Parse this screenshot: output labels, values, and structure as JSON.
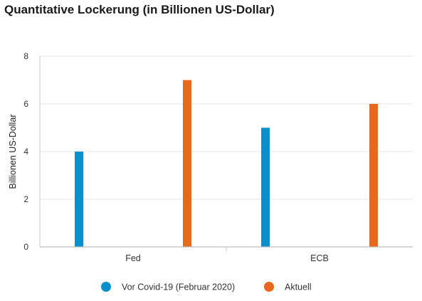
{
  "chart_data": {
    "type": "bar",
    "title": "Quantitative Lockerung (in Billionen US-Dollar)",
    "ylabel": "Billionen US-Dollar",
    "xlabel": "",
    "categories": [
      "Fed",
      "ECB"
    ],
    "series": [
      {
        "name": "Vor Covid-19 (Februar 2020)",
        "color": "#0b8fcb",
        "values": [
          4,
          5
        ]
      },
      {
        "name": "Aktuell",
        "color": "#e8691e",
        "values": [
          7,
          6
        ]
      }
    ],
    "ylim": [
      0,
      8
    ],
    "yticks": [
      0,
      2,
      4,
      6,
      8
    ],
    "grid": true,
    "legend_position": "bottom"
  }
}
